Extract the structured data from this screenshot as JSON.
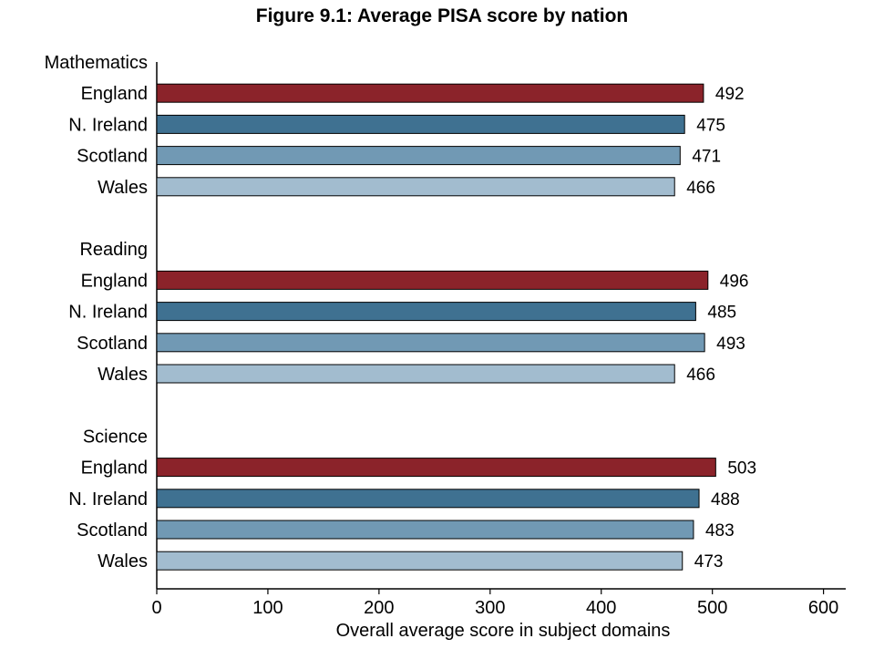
{
  "chart_data": {
    "type": "bar",
    "orientation": "horizontal",
    "title": "Figure 9.1: Average PISA score by nation",
    "xlabel": "Overall average score in subject domains",
    "ylabel": "",
    "xlim": [
      0,
      620
    ],
    "xticks": [
      0,
      100,
      200,
      300,
      400,
      500,
      600
    ],
    "grid": false,
    "legend": "none",
    "categories": [
      "England",
      "N. Ireland",
      "Scotland",
      "Wales"
    ],
    "colors": {
      "England": "#8b232a",
      "N. Ireland": "#3f7191",
      "Scotland": "#7199b4",
      "Wales": "#a2bccf"
    },
    "groups": [
      {
        "name": "Mathematics",
        "values": [
          492,
          475,
          471,
          466
        ]
      },
      {
        "name": "Reading",
        "values": [
          496,
          485,
          493,
          466
        ]
      },
      {
        "name": "Science",
        "values": [
          503,
          488,
          483,
          473
        ]
      }
    ]
  }
}
